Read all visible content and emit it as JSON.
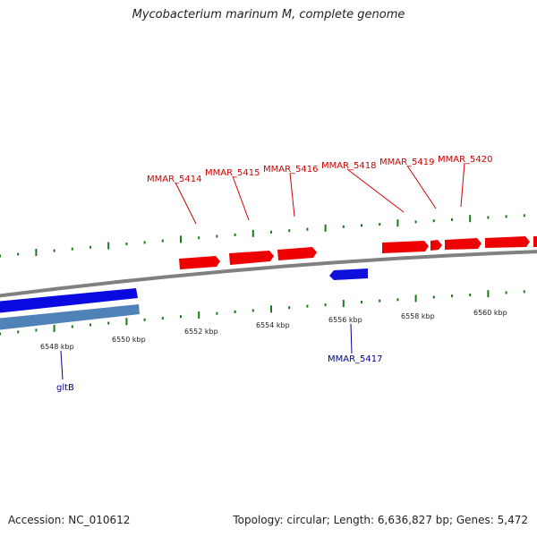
{
  "title": "Mycobacterium marinum M, complete genome",
  "footer": {
    "accession": "Accession: NC_010612",
    "summary": "Topology: circular; Length: 6,636,827 bp; Genes: 5,472"
  },
  "colors": {
    "forward_gene": "#ee0000",
    "reverse_gene": "#1010dd",
    "forward_label": "#cc0000",
    "reverse_label": "#000099",
    "tick": "#1a7a1a",
    "backbone": "#808080",
    "band_dark": "#0a0ae0",
    "band_light": "#4f83b8"
  },
  "scale_labels": [
    "6548 kbp",
    "6550 kbp",
    "6552 kbp",
    "6554 kbp",
    "6556 kbp",
    "6558 kbp",
    "6560 kbp"
  ],
  "forward_genes": [
    "MMAR_5414",
    "MMAR_5415",
    "MMAR_5416",
    "MMAR_5418",
    "MMAR_5419",
    "MMAR_5420"
  ],
  "reverse_genes": [
    "MMAR_5417",
    "gltB"
  ]
}
